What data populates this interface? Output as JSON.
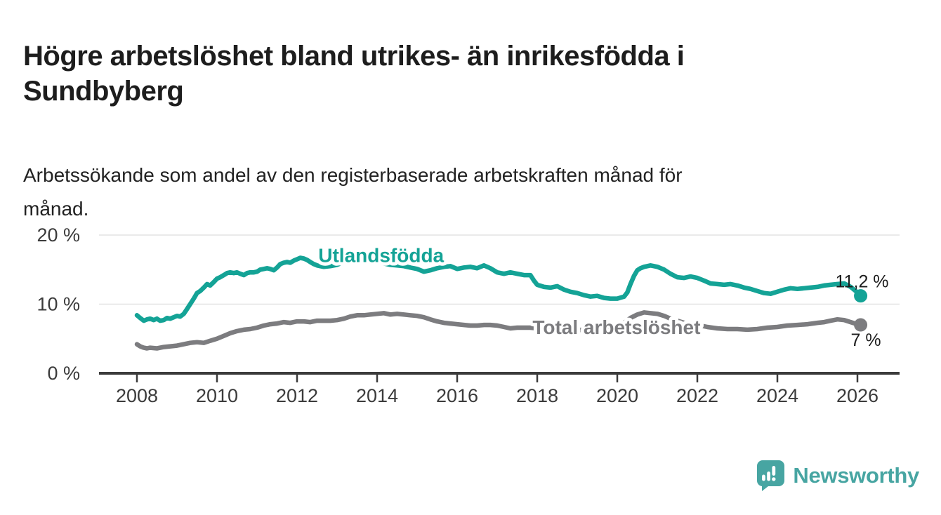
{
  "header": {
    "title_line1": "Högre arbetslöshet bland utrikes- än inrikesfödda i",
    "title_line2": "Sundbyberg",
    "subtitle_line1": "Arbetssökande som andel av den registerbaserade arbetskraften månad för",
    "subtitle_line2": "månad."
  },
  "colors": {
    "teal": "#14a396",
    "gray": "#7c7c7f",
    "text_dark": "#1d1d1d",
    "axis": "#3b3b3b",
    "grid": "#e3e3e3",
    "logo_teal": "#47a5a2"
  },
  "footer": {
    "brand": "Newsworthy",
    "logo_icon": "speech-bubble-bar-chart-icon"
  },
  "chart_data": {
    "type": "line",
    "x_unit": "decimal_year_monthly",
    "xlim": [
      2007.2,
      2027.0
    ],
    "ylim": [
      0,
      21
    ],
    "grid": "horizontal",
    "y_ticks": [
      {
        "value": 0,
        "label": "0 %"
      },
      {
        "value": 10,
        "label": "10 %"
      },
      {
        "value": 20,
        "label": "20 %"
      }
    ],
    "x_ticks": [
      2008,
      2010,
      2012,
      2014,
      2016,
      2018,
      2020,
      2022,
      2024,
      2026
    ],
    "legend_position": "inline-labels",
    "series": [
      {
        "name": "Utlandsfödda",
        "color": "#14a396",
        "end_value": 11.2,
        "end_label": "11,2 %",
        "end_label_offset": [
          -36,
          -12
        ],
        "label_pos": {
          "year": 2014.1,
          "value": 16.1
        },
        "points": [
          [
            2008.0,
            8.4
          ],
          [
            2008.08,
            8.0
          ],
          [
            2008.17,
            7.6
          ],
          [
            2008.25,
            7.8
          ],
          [
            2008.33,
            7.9
          ],
          [
            2008.42,
            7.7
          ],
          [
            2008.5,
            7.9
          ],
          [
            2008.58,
            7.6
          ],
          [
            2008.67,
            7.7
          ],
          [
            2008.75,
            8.0
          ],
          [
            2008.83,
            7.9
          ],
          [
            2008.92,
            8.1
          ],
          [
            2009.0,
            8.3
          ],
          [
            2009.08,
            8.2
          ],
          [
            2009.17,
            8.6
          ],
          [
            2009.25,
            9.3
          ],
          [
            2009.33,
            10.0
          ],
          [
            2009.42,
            10.8
          ],
          [
            2009.5,
            11.6
          ],
          [
            2009.58,
            11.9
          ],
          [
            2009.67,
            12.4
          ],
          [
            2009.75,
            12.9
          ],
          [
            2009.83,
            12.7
          ],
          [
            2009.92,
            13.2
          ],
          [
            2010.0,
            13.7
          ],
          [
            2010.08,
            13.9
          ],
          [
            2010.17,
            14.2
          ],
          [
            2010.25,
            14.5
          ],
          [
            2010.33,
            14.6
          ],
          [
            2010.42,
            14.5
          ],
          [
            2010.5,
            14.6
          ],
          [
            2010.58,
            14.4
          ],
          [
            2010.67,
            14.2
          ],
          [
            2010.75,
            14.5
          ],
          [
            2010.83,
            14.6
          ],
          [
            2010.92,
            14.6
          ],
          [
            2011.0,
            14.7
          ],
          [
            2011.08,
            15.0
          ],
          [
            2011.17,
            15.1
          ],
          [
            2011.25,
            15.2
          ],
          [
            2011.33,
            15.1
          ],
          [
            2011.42,
            14.9
          ],
          [
            2011.5,
            15.3
          ],
          [
            2011.58,
            15.8
          ],
          [
            2011.67,
            16.0
          ],
          [
            2011.75,
            16.1
          ],
          [
            2011.83,
            16.0
          ],
          [
            2011.92,
            16.3
          ],
          [
            2012.0,
            16.5
          ],
          [
            2012.08,
            16.7
          ],
          [
            2012.17,
            16.6
          ],
          [
            2012.25,
            16.4
          ],
          [
            2012.33,
            16.1
          ],
          [
            2012.42,
            15.8
          ],
          [
            2012.5,
            15.6
          ],
          [
            2012.58,
            15.5
          ],
          [
            2012.67,
            15.4
          ],
          [
            2012.83,
            15.5
          ],
          [
            2013.0,
            15.7
          ],
          [
            2013.17,
            16.1
          ],
          [
            2013.33,
            16.5
          ],
          [
            2013.5,
            16.9
          ],
          [
            2013.67,
            17.1
          ],
          [
            2013.83,
            16.7
          ],
          [
            2014.0,
            16.2
          ],
          [
            2014.17,
            15.9
          ],
          [
            2014.33,
            15.7
          ],
          [
            2014.5,
            15.6
          ],
          [
            2014.67,
            15.5
          ],
          [
            2014.83,
            15.3
          ],
          [
            2015.0,
            15.1
          ],
          [
            2015.17,
            14.7
          ],
          [
            2015.33,
            14.9
          ],
          [
            2015.5,
            15.2
          ],
          [
            2015.67,
            15.4
          ],
          [
            2015.83,
            15.5
          ],
          [
            2016.0,
            15.1
          ],
          [
            2016.17,
            15.3
          ],
          [
            2016.33,
            15.4
          ],
          [
            2016.5,
            15.2
          ],
          [
            2016.67,
            15.6
          ],
          [
            2016.83,
            15.2
          ],
          [
            2017.0,
            14.6
          ],
          [
            2017.17,
            14.4
          ],
          [
            2017.33,
            14.6
          ],
          [
            2017.5,
            14.4
          ],
          [
            2017.67,
            14.2
          ],
          [
            2017.83,
            14.2
          ],
          [
            2017.92,
            13.4
          ],
          [
            2018.0,
            12.8
          ],
          [
            2018.17,
            12.5
          ],
          [
            2018.33,
            12.4
          ],
          [
            2018.5,
            12.6
          ],
          [
            2018.67,
            12.1
          ],
          [
            2018.83,
            11.8
          ],
          [
            2019.0,
            11.6
          ],
          [
            2019.17,
            11.3
          ],
          [
            2019.33,
            11.1
          ],
          [
            2019.5,
            11.2
          ],
          [
            2019.67,
            10.9
          ],
          [
            2019.83,
            10.8
          ],
          [
            2020.0,
            10.8
          ],
          [
            2020.17,
            11.1
          ],
          [
            2020.25,
            11.7
          ],
          [
            2020.33,
            12.9
          ],
          [
            2020.42,
            14.1
          ],
          [
            2020.5,
            14.9
          ],
          [
            2020.58,
            15.2
          ],
          [
            2020.67,
            15.4
          ],
          [
            2020.75,
            15.5
          ],
          [
            2020.83,
            15.6
          ],
          [
            2020.92,
            15.5
          ],
          [
            2021.0,
            15.4
          ],
          [
            2021.17,
            15.0
          ],
          [
            2021.33,
            14.4
          ],
          [
            2021.5,
            13.9
          ],
          [
            2021.67,
            13.8
          ],
          [
            2021.83,
            14.0
          ],
          [
            2022.0,
            13.8
          ],
          [
            2022.17,
            13.4
          ],
          [
            2022.33,
            13.0
          ],
          [
            2022.5,
            12.9
          ],
          [
            2022.67,
            12.8
          ],
          [
            2022.83,
            12.9
          ],
          [
            2023.0,
            12.7
          ],
          [
            2023.17,
            12.4
          ],
          [
            2023.33,
            12.2
          ],
          [
            2023.5,
            11.9
          ],
          [
            2023.67,
            11.6
          ],
          [
            2023.83,
            11.5
          ],
          [
            2024.0,
            11.8
          ],
          [
            2024.17,
            12.1
          ],
          [
            2024.33,
            12.3
          ],
          [
            2024.5,
            12.2
          ],
          [
            2024.67,
            12.3
          ],
          [
            2024.83,
            12.4
          ],
          [
            2025.0,
            12.5
          ],
          [
            2025.17,
            12.7
          ],
          [
            2025.33,
            12.8
          ],
          [
            2025.5,
            12.9
          ],
          [
            2025.67,
            13.0
          ],
          [
            2025.83,
            12.5
          ],
          [
            2026.0,
            11.7
          ],
          [
            2026.08,
            11.2
          ]
        ]
      },
      {
        "name": "Total arbetslöshet",
        "color": "#7c7c7f",
        "end_value": 7.0,
        "end_label": "7 %",
        "end_label_offset": [
          -14,
          30
        ],
        "label_pos": {
          "year": 2019.98,
          "value": 5.7
        },
        "points": [
          [
            2008.0,
            4.2
          ],
          [
            2008.08,
            3.9
          ],
          [
            2008.17,
            3.7
          ],
          [
            2008.25,
            3.6
          ],
          [
            2008.33,
            3.7
          ],
          [
            2008.5,
            3.6
          ],
          [
            2008.67,
            3.8
          ],
          [
            2008.83,
            3.9
          ],
          [
            2009.0,
            4.0
          ],
          [
            2009.17,
            4.2
          ],
          [
            2009.33,
            4.4
          ],
          [
            2009.5,
            4.5
          ],
          [
            2009.67,
            4.4
          ],
          [
            2009.83,
            4.7
          ],
          [
            2010.0,
            5.0
          ],
          [
            2010.17,
            5.4
          ],
          [
            2010.33,
            5.8
          ],
          [
            2010.5,
            6.1
          ],
          [
            2010.67,
            6.3
          ],
          [
            2010.83,
            6.4
          ],
          [
            2011.0,
            6.6
          ],
          [
            2011.17,
            6.9
          ],
          [
            2011.33,
            7.1
          ],
          [
            2011.5,
            7.2
          ],
          [
            2011.67,
            7.4
          ],
          [
            2011.83,
            7.3
          ],
          [
            2012.0,
            7.5
          ],
          [
            2012.17,
            7.5
          ],
          [
            2012.33,
            7.4
          ],
          [
            2012.5,
            7.6
          ],
          [
            2012.67,
            7.6
          ],
          [
            2012.83,
            7.6
          ],
          [
            2013.0,
            7.7
          ],
          [
            2013.17,
            7.9
          ],
          [
            2013.33,
            8.2
          ],
          [
            2013.5,
            8.4
          ],
          [
            2013.67,
            8.4
          ],
          [
            2013.83,
            8.5
          ],
          [
            2014.0,
            8.6
          ],
          [
            2014.17,
            8.7
          ],
          [
            2014.33,
            8.5
          ],
          [
            2014.5,
            8.6
          ],
          [
            2014.67,
            8.5
          ],
          [
            2014.83,
            8.4
          ],
          [
            2015.0,
            8.3
          ],
          [
            2015.17,
            8.1
          ],
          [
            2015.33,
            7.8
          ],
          [
            2015.5,
            7.5
          ],
          [
            2015.67,
            7.3
          ],
          [
            2015.83,
            7.2
          ],
          [
            2016.0,
            7.1
          ],
          [
            2016.17,
            7.0
          ],
          [
            2016.33,
            6.9
          ],
          [
            2016.5,
            6.9
          ],
          [
            2016.67,
            7.0
          ],
          [
            2016.83,
            7.0
          ],
          [
            2017.0,
            6.9
          ],
          [
            2017.17,
            6.7
          ],
          [
            2017.33,
            6.5
          ],
          [
            2017.5,
            6.6
          ],
          [
            2017.67,
            6.6
          ],
          [
            2017.83,
            6.6
          ],
          [
            2018.0,
            6.5
          ],
          [
            2018.25,
            6.4
          ],
          [
            2018.5,
            6.4
          ],
          [
            2018.75,
            6.3
          ],
          [
            2019.0,
            6.3
          ],
          [
            2019.25,
            6.2
          ],
          [
            2019.5,
            6.3
          ],
          [
            2019.75,
            6.5
          ],
          [
            2020.0,
            6.8
          ],
          [
            2020.17,
            7.3
          ],
          [
            2020.33,
            8.0
          ],
          [
            2020.5,
            8.5
          ],
          [
            2020.67,
            8.8
          ],
          [
            2020.83,
            8.7
          ],
          [
            2021.0,
            8.6
          ],
          [
            2021.17,
            8.3
          ],
          [
            2021.33,
            7.9
          ],
          [
            2021.5,
            7.6
          ],
          [
            2021.67,
            7.3
          ],
          [
            2021.83,
            7.1
          ],
          [
            2022.0,
            7.0
          ],
          [
            2022.25,
            6.7
          ],
          [
            2022.5,
            6.5
          ],
          [
            2022.75,
            6.4
          ],
          [
            2023.0,
            6.4
          ],
          [
            2023.25,
            6.3
          ],
          [
            2023.5,
            6.4
          ],
          [
            2023.75,
            6.6
          ],
          [
            2024.0,
            6.7
          ],
          [
            2024.25,
            6.9
          ],
          [
            2024.5,
            7.0
          ],
          [
            2024.75,
            7.1
          ],
          [
            2025.0,
            7.3
          ],
          [
            2025.17,
            7.4
          ],
          [
            2025.33,
            7.6
          ],
          [
            2025.5,
            7.8
          ],
          [
            2025.67,
            7.7
          ],
          [
            2025.83,
            7.4
          ],
          [
            2026.0,
            7.1
          ],
          [
            2026.08,
            7.0
          ]
        ]
      }
    ]
  }
}
